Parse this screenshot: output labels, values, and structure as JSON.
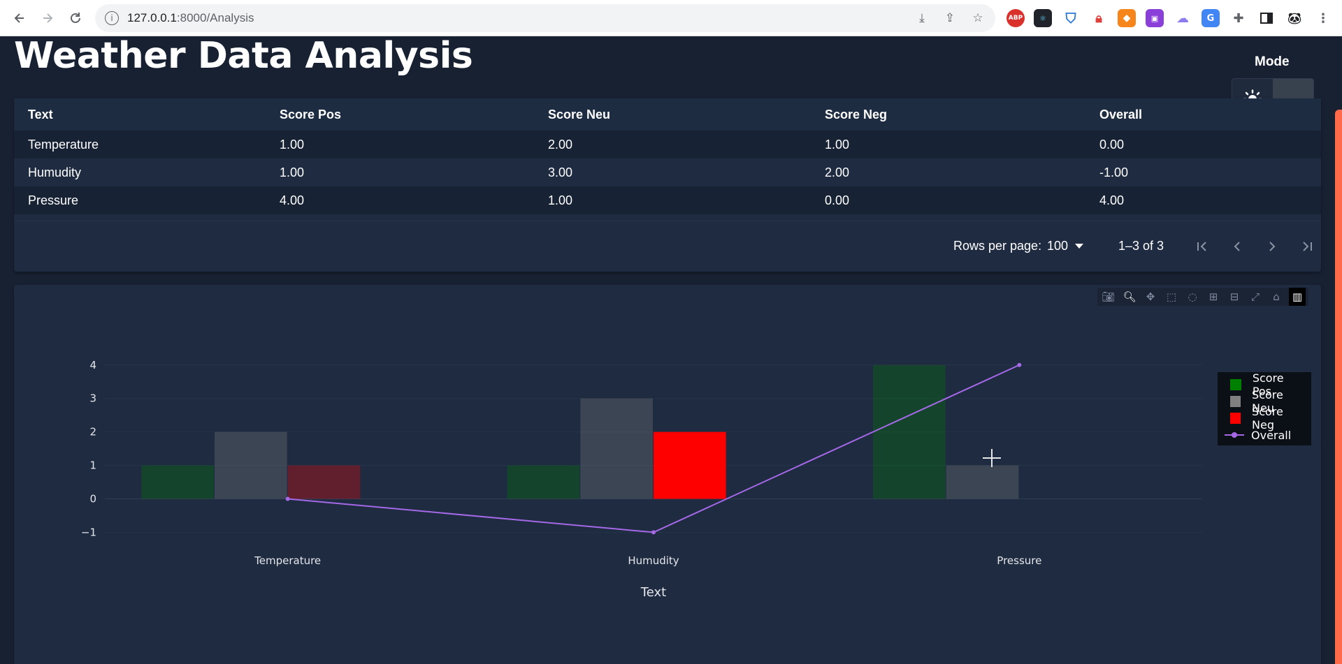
{
  "browser": {
    "url_host": "127.0.0.1",
    "url_path": ":8000/Analysis"
  },
  "page": {
    "title": "Weather Data Analysis",
    "mode_label": "Mode",
    "mode_active": "dark"
  },
  "table": {
    "columns": [
      "Text",
      "Score Pos",
      "Score Neu",
      "Score Neg",
      "Overall"
    ],
    "rows": [
      [
        "Temperature",
        "1.00",
        "2.00",
        "1.00",
        "0.00"
      ],
      [
        "Humudity",
        "1.00",
        "3.00",
        "2.00",
        "-1.00"
      ],
      [
        "Pressure",
        "4.00",
        "1.00",
        "0.00",
        "4.00"
      ]
    ],
    "rows_per_page_label": "Rows per page:",
    "rows_per_page_value": "100",
    "range_text": "1–3 of 3"
  },
  "chart_data": {
    "type": "bar",
    "categories": [
      "Temperature",
      "Humudity",
      "Pressure"
    ],
    "xlabel": "Text",
    "ylabel": "",
    "ylim": [
      -1.2,
      4.6
    ],
    "yticks": [
      -1,
      0,
      1,
      2,
      3,
      4
    ],
    "ytick_labels": [
      "−1",
      "0",
      "1",
      "2",
      "3",
      "4"
    ],
    "grid": true,
    "legend_position": "top-right",
    "series": [
      {
        "name": "Score Pos",
        "kind": "bar",
        "color": "#008000",
        "values": [
          1,
          1,
          4
        ]
      },
      {
        "name": "Score Neu",
        "kind": "bar",
        "color": "#808080",
        "values": [
          2,
          3,
          1
        ]
      },
      {
        "name": "Score Neg",
        "kind": "bar",
        "color": "#ff0000",
        "values": [
          1,
          2,
          0
        ]
      },
      {
        "name": "Overall",
        "kind": "line",
        "color": "#a569e8",
        "values": [
          0,
          -1,
          4
        ]
      }
    ],
    "highlighted_bar": {
      "series": "Score Neg",
      "category": "Humudity"
    }
  },
  "colors": {
    "background": "#172132",
    "card": "#1e2b40",
    "accent": "#ff6b4a"
  }
}
